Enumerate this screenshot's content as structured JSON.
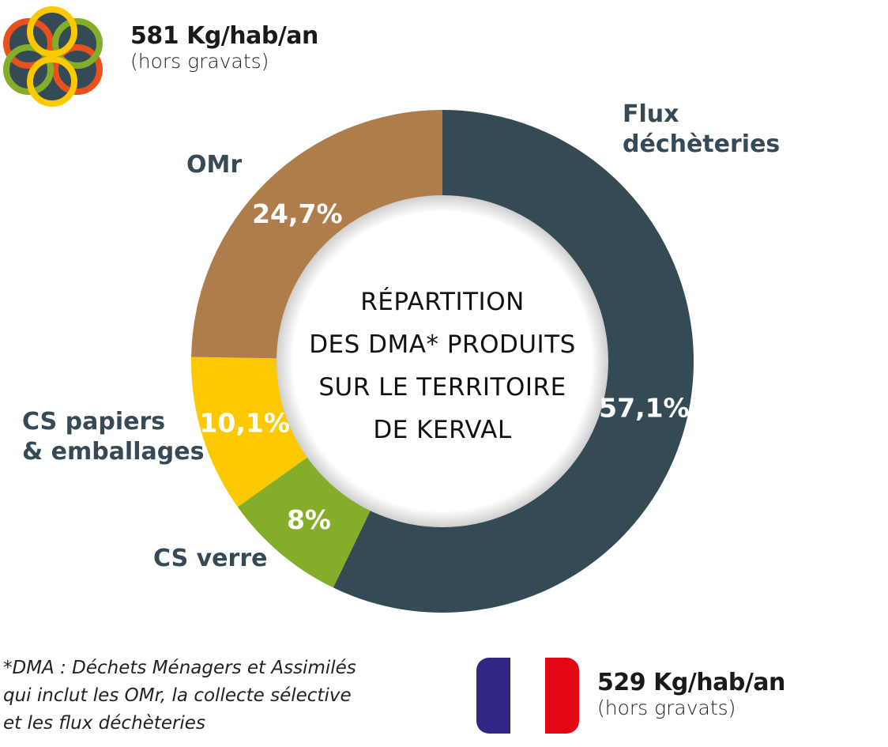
{
  "local_stat": {
    "value": "581 Kg/hab/an",
    "note": "(hors gravats)"
  },
  "national_stat": {
    "value": "529 Kg/hab/an",
    "note": "(hors gravats)"
  },
  "footnote": [
    "*DMA : Déchets Ménagers et Assimilés",
    "qui inclut les OMr, la collecte sélective",
    "et les flux déchèteries"
  ],
  "chart_data": {
    "type": "pie",
    "variant": "donut",
    "title": [
      "Répartition",
      "des DMA* produits",
      "sur le territoire",
      "de Kerval"
    ],
    "start_angle": "top",
    "direction": "clockwise",
    "slices": [
      {
        "label": [
          "Flux",
          "déchèteries"
        ],
        "value": 57.1,
        "value_label": "57,1%",
        "color": "#344b56"
      },
      {
        "label": [
          "CS verre"
        ],
        "value": 8.0,
        "value_label": "8%",
        "color": "#84ae2a"
      },
      {
        "label": [
          "CS papiers",
          "& emballages"
        ],
        "value": 10.1,
        "value_label": "10,1%",
        "color": "#fcc900"
      },
      {
        "label": [
          "OMr"
        ],
        "value": 24.7,
        "value_label": "24,7%",
        "color": "#af7c4b"
      }
    ]
  }
}
